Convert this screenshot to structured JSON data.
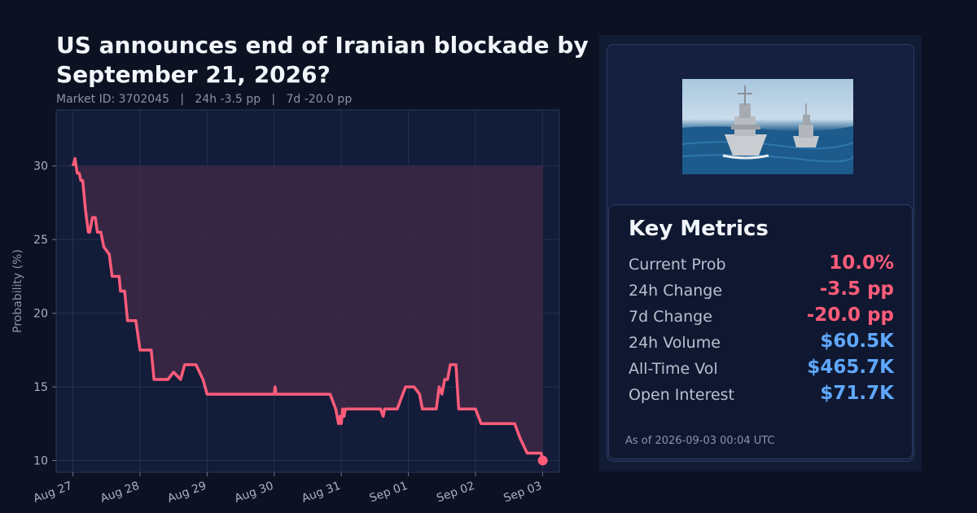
{
  "header": {
    "title": "US announces end of Iranian blockade by September 21, 2026?",
    "subtitle": "Market ID: 3702045   |   24h -3.5 pp   |   7d -20.0 pp"
  },
  "colors": {
    "background": "#0c1222",
    "plot_bg": "#131c38",
    "line": "#ff5c7a",
    "fill": "#3d2846",
    "grid": "#26324f",
    "negative": "#ff5c7a",
    "positive": "#5fa8ff"
  },
  "chart_data": {
    "type": "line",
    "title": "US announces end of Iranian blockade by September 21, 2026?",
    "xlabel": "",
    "ylabel": "Probability (%)",
    "x_ticks": [
      "Aug 27",
      "Aug 28",
      "Aug 29",
      "Aug 30",
      "Aug 31",
      "Sep 01",
      "Sep 02",
      "Sep 03"
    ],
    "y_ticks": [
      10,
      15,
      20,
      25,
      30
    ],
    "ylim": [
      9.2,
      33.8
    ],
    "xlim": [
      "2026-08-26 18:00",
      "2026-09-03 06:00"
    ],
    "grid": true,
    "baseline": 30,
    "series": [
      {
        "name": "",
        "x": [
          "2026-08-27 00:00",
          "2026-08-27 00:45",
          "2026-08-27 01:30",
          "2026-08-27 02:15",
          "2026-08-27 02:50",
          "2026-08-27 03:30",
          "2026-08-27 04:30",
          "2026-08-27 05:30",
          "2026-08-27 06:00",
          "2026-08-27 07:00",
          "2026-08-27 08:00",
          "2026-08-27 08:45",
          "2026-08-27 09:20",
          "2026-08-27 10:00",
          "2026-08-27 11:00",
          "2026-08-27 13:00",
          "2026-08-27 14:00",
          "2026-08-27 15:15",
          "2026-08-27 16:30",
          "2026-08-27 17:00",
          "2026-08-27 18:30",
          "2026-08-27 19:30",
          "2026-08-27 21:00",
          "2026-08-27 22:30",
          "2026-08-28 00:00",
          "2026-08-28 02:00",
          "2026-08-28 03:00",
          "2026-08-28 04:00",
          "2026-08-28 05:00",
          "2026-08-28 07:00",
          "2026-08-28 08:30",
          "2026-08-28 10:00",
          "2026-08-28 12:00",
          "2026-08-28 14:30",
          "2026-08-28 16:00",
          "2026-08-28 17:30",
          "2026-08-28 20:00",
          "2026-08-28 22:30",
          "2026-08-29 00:00",
          "2026-08-29 03:00",
          "2026-08-29 04:30",
          "2026-08-29 05:00",
          "2026-08-29 06:30",
          "2026-08-29 09:00",
          "2026-08-29 10:00",
          "2026-08-29 12:00",
          "2026-08-29 16:00",
          "2026-08-29 22:00",
          "2026-08-30 00:00",
          "2026-08-30 00:20",
          "2026-08-30 00:40",
          "2026-08-30 05:00",
          "2026-08-30 10:00",
          "2026-08-30 15:00",
          "2026-08-30 20:00",
          "2026-08-30 21:00",
          "2026-08-30 22:00",
          "2026-08-30 23:00",
          "2026-08-30 23:30",
          "2026-08-31 00:00",
          "2026-08-31 00:30",
          "2026-08-31 01:00",
          "2026-08-31 01:30",
          "2026-08-31 02:00",
          "2026-08-31 05:00",
          "2026-08-31 10:00",
          "2026-08-31 14:00",
          "2026-08-31 15:00",
          "2026-08-31 15:30",
          "2026-08-31 16:00",
          "2026-08-31 20:00",
          "2026-08-31 22:00",
          "2026-08-31 23:00",
          "2026-09-01 02:00",
          "2026-09-01 04:00",
          "2026-09-01 05:00",
          "2026-09-01 06:00",
          "2026-09-01 10:00",
          "2026-09-01 11:00",
          "2026-09-01 12:00",
          "2026-09-01 13:00",
          "2026-09-01 14:00",
          "2026-09-01 15:00",
          "2026-09-01 16:00",
          "2026-09-01 17:00",
          "2026-09-01 18:00",
          "2026-09-01 19:00",
          "2026-09-01 21:00",
          "2026-09-01 22:00",
          "2026-09-02 00:00",
          "2026-09-02 02:00",
          "2026-09-02 05:00",
          "2026-09-02 10:00",
          "2026-09-02 12:00",
          "2026-09-02 14:00",
          "2026-09-02 16:00",
          "2026-09-02 18:30",
          "2026-09-02 20:00",
          "2026-09-02 22:00",
          "2026-09-02 23:30",
          "2026-09-03 00:04"
        ],
        "values": [
          30.0,
          30.5,
          29.5,
          29.5,
          29.0,
          29.0,
          27.0,
          25.5,
          25.5,
          26.5,
          26.5,
          25.5,
          25.5,
          25.5,
          24.5,
          24.0,
          22.5,
          22.5,
          22.5,
          21.5,
          21.5,
          19.5,
          19.5,
          19.5,
          17.5,
          17.5,
          17.5,
          17.5,
          15.5,
          15.5,
          15.5,
          15.5,
          16.0,
          15.5,
          16.5,
          16.5,
          16.5,
          15.5,
          14.5,
          14.5,
          14.5,
          14.5,
          14.5,
          14.5,
          14.5,
          14.5,
          14.5,
          14.5,
          14.5,
          15.0,
          14.5,
          14.5,
          14.5,
          14.5,
          14.5,
          14.0,
          13.5,
          12.5,
          13.0,
          12.5,
          13.5,
          13.0,
          13.5,
          13.5,
          13.5,
          13.5,
          13.5,
          13.0,
          13.5,
          13.5,
          13.5,
          14.5,
          15.0,
          15.0,
          14.5,
          13.5,
          13.5,
          13.5,
          15.0,
          14.5,
          15.5,
          15.5,
          16.5,
          16.5,
          16.5,
          13.5,
          13.5,
          13.5,
          13.5,
          13.5,
          12.5,
          12.5,
          12.5,
          12.5,
          12.5,
          11.5,
          10.5,
          10.5,
          10.5,
          10.5,
          10.0
        ]
      }
    ]
  },
  "metrics": {
    "title": "Key Metrics",
    "rows": [
      {
        "label": "Current Prob",
        "value": "10.0%",
        "tone": "negative"
      },
      {
        "label": "24h Change",
        "value": "-3.5 pp",
        "tone": "negative"
      },
      {
        "label": "7d Change",
        "value": "-20.0 pp",
        "tone": "negative"
      },
      {
        "label": "24h Volume",
        "value": "$60.5K",
        "tone": "positive"
      },
      {
        "label": "All-Time Vol",
        "value": "$465.7K",
        "tone": "positive"
      },
      {
        "label": "Open Interest",
        "value": "$71.7K",
        "tone": "positive"
      }
    ],
    "as_of": "As of 2026-09-03 00:04 UTC"
  }
}
